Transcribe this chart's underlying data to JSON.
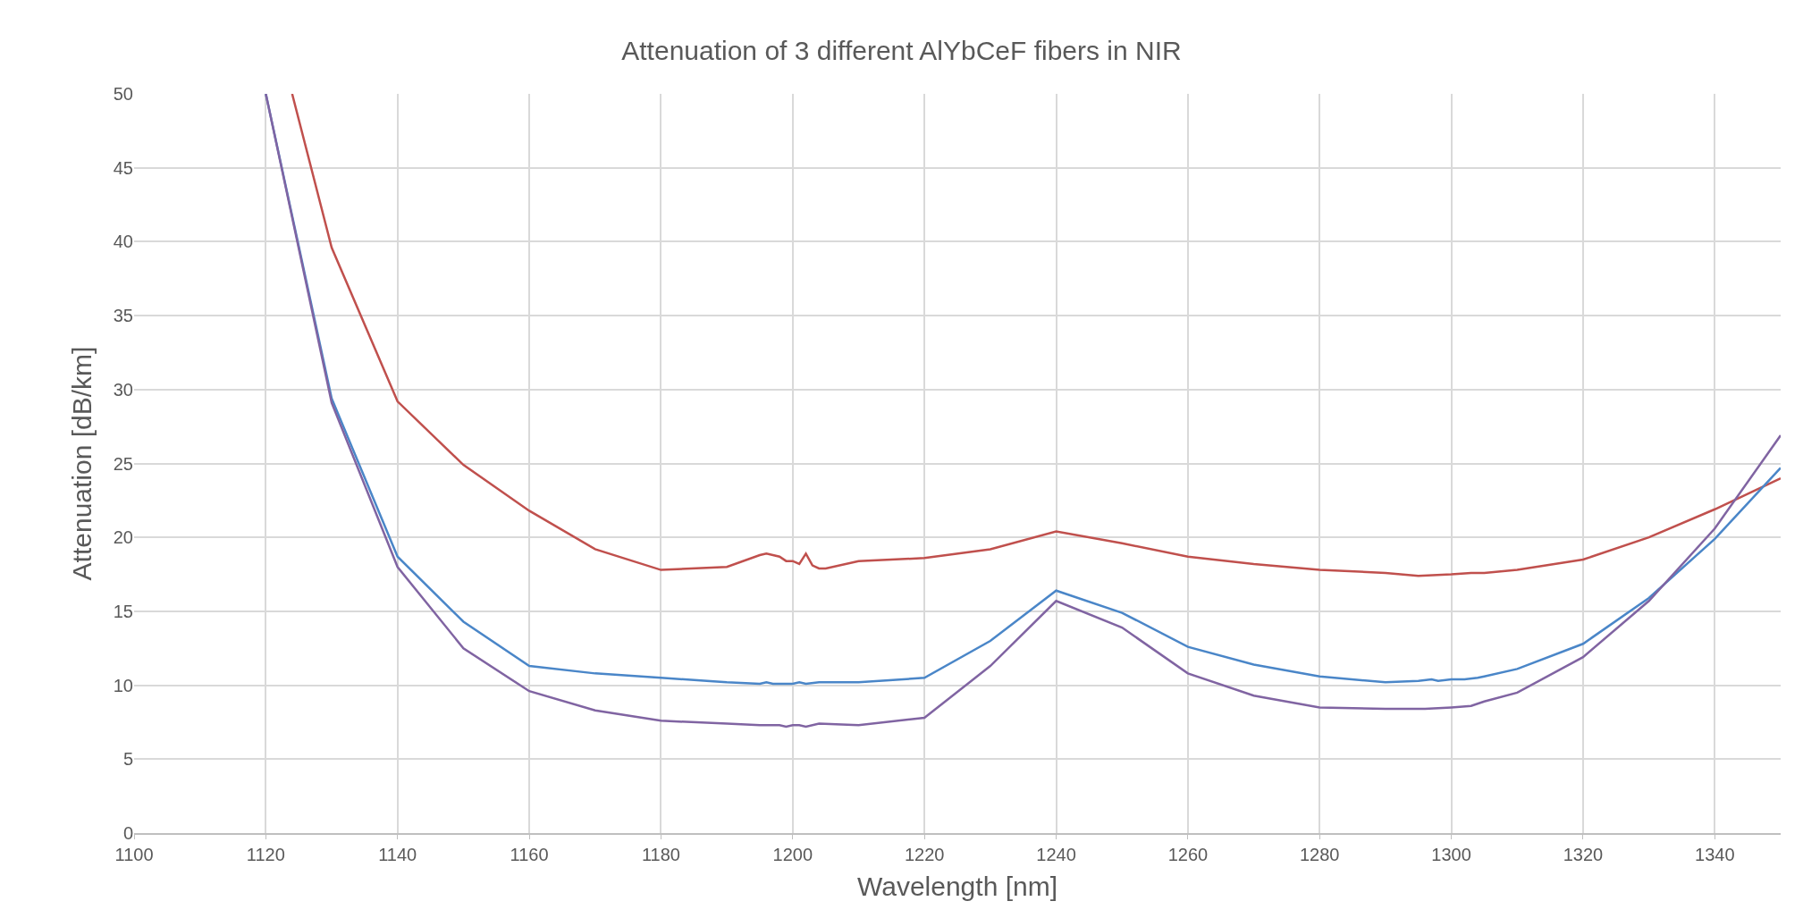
{
  "chart_data": {
    "type": "line",
    "title": "Attenuation of 3 different AlYbCeF fibers in NIR",
    "xlabel": "Wavelength [nm]",
    "ylabel": "Attenuation [dB/km]",
    "xlim": [
      1100,
      1350
    ],
    "xticks": [
      1100,
      1120,
      1140,
      1160,
      1180,
      1200,
      1220,
      1240,
      1260,
      1280,
      1300,
      1320,
      1340
    ],
    "ylim": [
      0,
      50
    ],
    "yticks": [
      0,
      5,
      10,
      15,
      20,
      25,
      30,
      35,
      40,
      45,
      50
    ],
    "grid": true,
    "marker": "none",
    "line_style": "solid",
    "series": [
      {
        "color": "#c0504d",
        "x": [
          1124,
          1130,
          1140,
          1150,
          1160,
          1170,
          1180,
          1190,
          1195,
          1196,
          1198,
          1199,
          1200,
          1201,
          1202,
          1203,
          1204,
          1205,
          1210,
          1220,
          1230,
          1240,
          1250,
          1260,
          1270,
          1280,
          1290,
          1295,
          1300,
          1303,
          1305,
          1310,
          1320,
          1330,
          1340,
          1350
        ],
        "values": [
          50,
          39.6,
          29.2,
          24.9,
          21.8,
          19.2,
          17.8,
          18.0,
          18.8,
          18.9,
          18.7,
          18.4,
          18.4,
          18.2,
          18.9,
          18.1,
          17.9,
          17.9,
          18.4,
          18.6,
          19.2,
          20.4,
          19.6,
          18.7,
          18.2,
          17.8,
          17.6,
          17.4,
          17.5,
          17.6,
          17.6,
          17.8,
          18.5,
          20.0,
          21.9,
          24.0
        ]
      },
      {
        "color": "#4a86c8",
        "x": [
          1120,
          1130,
          1140,
          1150,
          1160,
          1170,
          1180,
          1190,
          1195,
          1196,
          1197,
          1200,
          1201,
          1202,
          1204,
          1205,
          1210,
          1220,
          1230,
          1240,
          1250,
          1260,
          1270,
          1280,
          1290,
          1295,
          1297,
          1298,
          1300,
          1302,
          1304,
          1305,
          1310,
          1320,
          1330,
          1340,
          1350
        ],
        "values": [
          50,
          29.4,
          18.7,
          14.3,
          11.3,
          10.8,
          10.5,
          10.2,
          10.1,
          10.2,
          10.1,
          10.1,
          10.2,
          10.1,
          10.2,
          10.2,
          10.2,
          10.5,
          13.0,
          16.4,
          14.9,
          12.6,
          11.4,
          10.6,
          10.2,
          10.3,
          10.4,
          10.3,
          10.4,
          10.4,
          10.5,
          10.6,
          11.1,
          12.8,
          15.9,
          19.9,
          24.7
        ]
      },
      {
        "color": "#8064a2",
        "x": [
          1120,
          1130,
          1140,
          1150,
          1160,
          1170,
          1180,
          1190,
          1195,
          1198,
          1199,
          1200,
          1201,
          1202,
          1204,
          1210,
          1220,
          1230,
          1240,
          1250,
          1260,
          1270,
          1280,
          1290,
          1295,
          1296,
          1300,
          1303,
          1305,
          1310,
          1320,
          1330,
          1340,
          1350
        ],
        "values": [
          50,
          29.1,
          18.0,
          12.5,
          9.6,
          8.3,
          7.6,
          7.4,
          7.3,
          7.3,
          7.2,
          7.3,
          7.3,
          7.2,
          7.4,
          7.3,
          7.8,
          11.3,
          15.7,
          13.9,
          10.8,
          9.3,
          8.5,
          8.4,
          8.4,
          8.4,
          8.5,
          8.6,
          8.9,
          9.5,
          11.9,
          15.7,
          20.6,
          26.9
        ]
      }
    ]
  }
}
